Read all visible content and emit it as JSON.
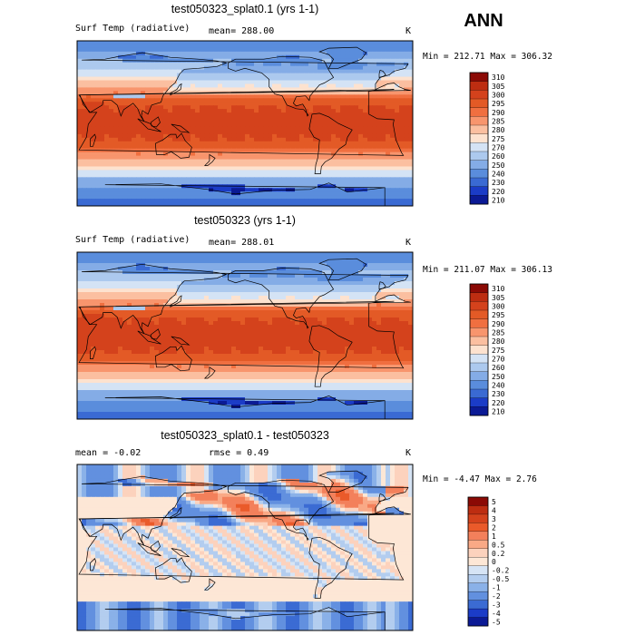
{
  "season": "ANN",
  "chart_data": [
    {
      "type": "heatmap",
      "title": "test050323_splat0.1 (yrs 1-1)",
      "variable_label": "Surf Temp (radiative)",
      "mean_text": "mean= 288.00",
      "units": "K",
      "minmax_text": "Min = 212.71 Max = 306.32",
      "min": 212.71,
      "max": 306.32,
      "field": "temperature",
      "levels": [
        "310",
        "305",
        "300",
        "295",
        "290",
        "285",
        "280",
        "275",
        "270",
        "260",
        "250",
        "240",
        "230",
        "220",
        "210"
      ],
      "colors": [
        "#8b0a05",
        "#bd2d11",
        "#d4421c",
        "#e35a26",
        "#f06f40",
        "#f8956d",
        "#fbbfa0",
        "#fde2cf",
        "#d4e3f5",
        "#acc9ee",
        "#84ace6",
        "#5a8ddc",
        "#3a6ad3",
        "#1b3cc7",
        "#0b1a95"
      ]
    },
    {
      "type": "heatmap",
      "title": "test050323 (yrs 1-1)",
      "variable_label": "Surf Temp (radiative)",
      "mean_text": "mean= 288.01",
      "units": "K",
      "minmax_text": "Min = 211.07 Max = 306.13",
      "min": 211.07,
      "max": 306.13,
      "field": "temperature",
      "levels": [
        "310",
        "305",
        "300",
        "295",
        "290",
        "285",
        "280",
        "275",
        "270",
        "260",
        "250",
        "240",
        "230",
        "220",
        "210"
      ],
      "colors": [
        "#8b0a05",
        "#bd2d11",
        "#d4421c",
        "#e35a26",
        "#f06f40",
        "#f8956d",
        "#fbbfa0",
        "#fde2cf",
        "#d4e3f5",
        "#acc9ee",
        "#84ace6",
        "#5a8ddc",
        "#3a6ad3",
        "#1b3cc7",
        "#0b1a95"
      ]
    },
    {
      "type": "heatmap",
      "title": "test050323_splat0.1 - test050323",
      "mean_text": "mean =   -0.02",
      "rmse_text": "rmse =    0.49",
      "units": "K",
      "minmax_text": "Min =  -4.47 Max =   2.76",
      "min": -4.47,
      "max": 2.76,
      "field": "difference",
      "levels": [
        "5",
        "4",
        "3",
        "2",
        "1",
        "0.5",
        "0.2",
        "0",
        "-0.2",
        "-0.5",
        "-1",
        "-2",
        "-3",
        "-4",
        "-5"
      ],
      "colors": [
        "#8b0a05",
        "#bd2d11",
        "#d4421c",
        "#ea5a2a",
        "#f3805b",
        "#f9a986",
        "#fcd2bd",
        "#fde7d6",
        "#d6e4f5",
        "#b3cdef",
        "#8ab1e8",
        "#6290df",
        "#3b6bd3",
        "#1b3cc7",
        "#0b1a95"
      ]
    }
  ]
}
